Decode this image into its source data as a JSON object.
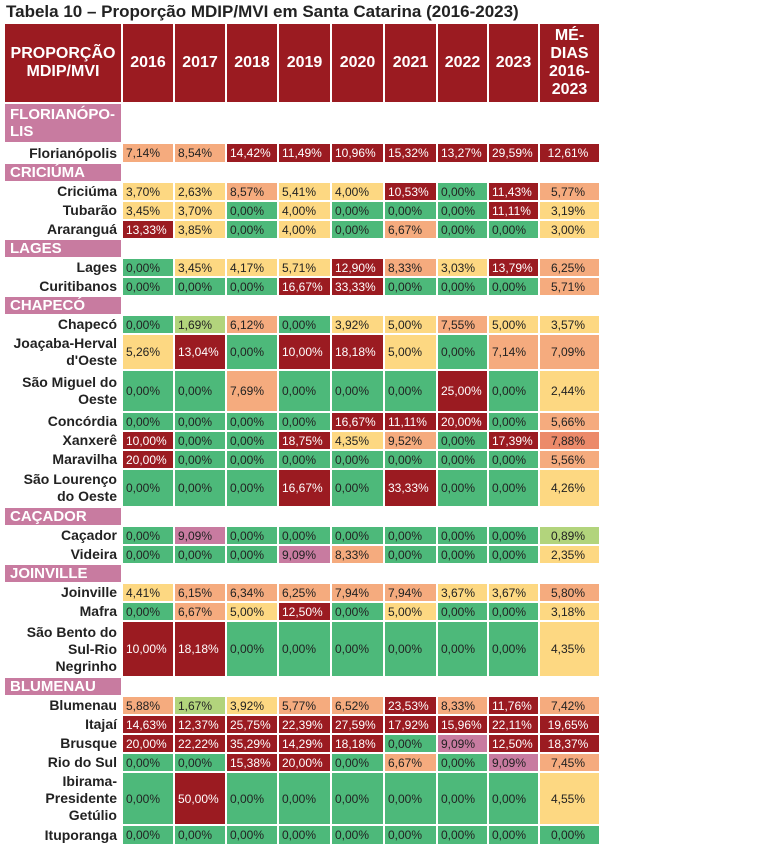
{
  "title": "Tabela 10 – Proporção MDIP/MVI em Santa Catarina (2016-2023)",
  "header": {
    "label": "PROPORÇÃO MDIP/MVI",
    "years": [
      "2016",
      "2017",
      "2018",
      "2019",
      "2020",
      "2021",
      "2022",
      "2023"
    ],
    "avg": "MÉ-DIAS 2016-2023"
  },
  "colors": {
    "header": "#9b1b21",
    "group": "#c87ba0",
    "green": "#4db97a",
    "light_green": "#b2d47c",
    "yellow": "#fdd882",
    "orange": "#f5ab7e",
    "dark_orange": "#ec8a6a",
    "red": "#9b1b21",
    "pink": "#c87ba0"
  },
  "rows": [
    {
      "group": "FLORIANÓPO-LIS"
    },
    {
      "label": "Florianópolis",
      "values": [
        "7,14%",
        "8,54%",
        "14,42%",
        "11,49%",
        "10,96%",
        "15,32%",
        "13,27%",
        "29,59%"
      ],
      "avg": "12,61%",
      "colors": [
        "O",
        "O",
        "R",
        "R",
        "R",
        "R",
        "R",
        "R"
      ],
      "avg_color": "R"
    },
    {
      "group": "CRICIÚMA"
    },
    {
      "label": "Criciúma",
      "values": [
        "3,70%",
        "2,63%",
        "8,57%",
        "5,41%",
        "4,00%",
        "10,53%",
        "0,00%",
        "11,43%"
      ],
      "avg": "5,77%",
      "colors": [
        "Y",
        "Y",
        "O",
        "Y",
        "Y",
        "R",
        "G",
        "R"
      ],
      "avg_color": "O"
    },
    {
      "label": "Tubarão",
      "values": [
        "3,45%",
        "3,70%",
        "0,00%",
        "4,00%",
        "0,00%",
        "0,00%",
        "0,00%",
        "11,11%"
      ],
      "avg": "3,19%",
      "colors": [
        "Y",
        "Y",
        "G",
        "Y",
        "G",
        "G",
        "G",
        "R"
      ],
      "avg_color": "Y"
    },
    {
      "label": "Araranguá",
      "values": [
        "13,33%",
        "3,85%",
        "0,00%",
        "4,00%",
        "0,00%",
        "6,67%",
        "0,00%",
        "0,00%"
      ],
      "avg": "3,00%",
      "colors": [
        "R",
        "Y",
        "G",
        "Y",
        "G",
        "O",
        "G",
        "G"
      ],
      "avg_color": "Y"
    },
    {
      "group": "LAGES"
    },
    {
      "label": "Lages",
      "values": [
        "0,00%",
        "3,45%",
        "4,17%",
        "5,71%",
        "12,90%",
        "8,33%",
        "3,03%",
        "13,79%"
      ],
      "avg": "6,25%",
      "colors": [
        "G",
        "Y",
        "Y",
        "Y",
        "R",
        "O",
        "Y",
        "R"
      ],
      "avg_color": "O"
    },
    {
      "label": "Curitibanos",
      "values": [
        "0,00%",
        "0,00%",
        "0,00%",
        "16,67%",
        "33,33%",
        "0,00%",
        "0,00%",
        "0,00%"
      ],
      "avg": "5,71%",
      "colors": [
        "G",
        "G",
        "G",
        "R",
        "R",
        "G",
        "G",
        "G"
      ],
      "avg_color": "O"
    },
    {
      "group": "CHAPECÓ"
    },
    {
      "label": "Chapecó",
      "values": [
        "0,00%",
        "1,69%",
        "6,12%",
        "0,00%",
        "3,92%",
        "5,00%",
        "7,55%",
        "5,00%"
      ],
      "avg": "3,57%",
      "colors": [
        "G",
        "LG",
        "O",
        "G",
        "Y",
        "Y",
        "O",
        "Y"
      ],
      "avg_color": "Y"
    },
    {
      "label": "Joaçaba-Herval d'Oeste",
      "values": [
        "5,26%",
        "13,04%",
        "0,00%",
        "10,00%",
        "18,18%",
        "5,00%",
        "0,00%",
        "7,14%"
      ],
      "avg": "7,09%",
      "colors": [
        "Y",
        "R",
        "G",
        "R",
        "R",
        "Y",
        "G",
        "O"
      ],
      "avg_color": "O"
    },
    {
      "label": "São Miguel do Oeste",
      "values": [
        "0,00%",
        "0,00%",
        "7,69%",
        "0,00%",
        "0,00%",
        "0,00%",
        "25,00%",
        "0,00%"
      ],
      "avg": "2,44%",
      "colors": [
        "G",
        "G",
        "O",
        "G",
        "G",
        "G",
        "R",
        "G"
      ],
      "avg_color": "Y"
    },
    {
      "label": "Concórdia",
      "values": [
        "0,00%",
        "0,00%",
        "0,00%",
        "0,00%",
        "16,67%",
        "11,11%",
        "20,00%",
        "0,00%"
      ],
      "avg": "5,66%",
      "colors": [
        "G",
        "G",
        "G",
        "G",
        "R",
        "R",
        "R",
        "G"
      ],
      "avg_color": "O"
    },
    {
      "label": "Xanxerê",
      "values": [
        "10,00%",
        "0,00%",
        "0,00%",
        "18,75%",
        "4,35%",
        "9,52%",
        "0,00%",
        "17,39%"
      ],
      "avg": "7,88%",
      "colors": [
        "R",
        "G",
        "G",
        "R",
        "Y",
        "O",
        "G",
        "R"
      ],
      "avg_color": "DO"
    },
    {
      "label": "Maravilha",
      "values": [
        "20,00%",
        "0,00%",
        "0,00%",
        "0,00%",
        "0,00%",
        "0,00%",
        "0,00%",
        "0,00%"
      ],
      "avg": "5,56%",
      "colors": [
        "R",
        "G",
        "G",
        "G",
        "G",
        "G",
        "G",
        "G"
      ],
      "avg_color": "O"
    },
    {
      "label": "São Lourenço do Oeste",
      "values": [
        "0,00%",
        "0,00%",
        "0,00%",
        "16,67%",
        "0,00%",
        "33,33%",
        "0,00%",
        "0,00%"
      ],
      "avg": "4,26%",
      "colors": [
        "G",
        "G",
        "G",
        "R",
        "G",
        "R",
        "G",
        "G"
      ],
      "avg_color": "Y"
    },
    {
      "group": "CAÇADOR"
    },
    {
      "label": "Caçador",
      "values": [
        "0,00%",
        "9,09%",
        "0,00%",
        "0,00%",
        "0,00%",
        "0,00%",
        "0,00%",
        "0,00%"
      ],
      "avg": "0,89%",
      "colors": [
        "G",
        "P",
        "G",
        "G",
        "G",
        "G",
        "G",
        "G"
      ],
      "avg_color": "LG"
    },
    {
      "label": "Videira",
      "values": [
        "0,00%",
        "0,00%",
        "0,00%",
        "9,09%",
        "8,33%",
        "0,00%",
        "0,00%",
        "0,00%"
      ],
      "avg": "2,35%",
      "colors": [
        "G",
        "G",
        "G",
        "P",
        "O",
        "G",
        "G",
        "G"
      ],
      "avg_color": "Y"
    },
    {
      "group": "JOINVILLE"
    },
    {
      "label": "Joinville",
      "values": [
        "4,41%",
        "6,15%",
        "6,34%",
        "6,25%",
        "7,94%",
        "7,94%",
        "3,67%",
        "3,67%"
      ],
      "avg": "5,80%",
      "colors": [
        "Y",
        "O",
        "O",
        "O",
        "O",
        "O",
        "Y",
        "Y"
      ],
      "avg_color": "O"
    },
    {
      "label": "Mafra",
      "values": [
        "0,00%",
        "6,67%",
        "5,00%",
        "12,50%",
        "0,00%",
        "5,00%",
        "0,00%",
        "0,00%"
      ],
      "avg": "3,18%",
      "colors": [
        "G",
        "O",
        "Y",
        "R",
        "G",
        "Y",
        "G",
        "G"
      ],
      "avg_color": "Y"
    },
    {
      "label": "São Bento do Sul-Rio Negrinho",
      "values": [
        "10,00%",
        "18,18%",
        "0,00%",
        "0,00%",
        "0,00%",
        "0,00%",
        "0,00%",
        "0,00%"
      ],
      "avg": "4,35%",
      "colors": [
        "R",
        "R",
        "G",
        "G",
        "G",
        "G",
        "G",
        "G"
      ],
      "avg_color": "Y"
    },
    {
      "group": "BLUMENAU"
    },
    {
      "label": "Blumenau",
      "values": [
        "5,88%",
        "1,67%",
        "3,92%",
        "5,77%",
        "6,52%",
        "23,53%",
        "8,33%",
        "11,76%"
      ],
      "avg": "7,42%",
      "colors": [
        "O",
        "LG",
        "Y",
        "O",
        "O",
        "R",
        "O",
        "R"
      ],
      "avg_color": "O"
    },
    {
      "label": "Itajaí",
      "values": [
        "14,63%",
        "12,37%",
        "25,75%",
        "22,39%",
        "27,59%",
        "17,92%",
        "15,96%",
        "22,11%"
      ],
      "avg": "19,65%",
      "colors": [
        "R",
        "R",
        "R",
        "R",
        "R",
        "R",
        "R",
        "R"
      ],
      "avg_color": "R"
    },
    {
      "label": "Brusque",
      "values": [
        "20,00%",
        "22,22%",
        "35,29%",
        "14,29%",
        "18,18%",
        "0,00%",
        "9,09%",
        "12,50%"
      ],
      "avg": "18,37%",
      "colors": [
        "R",
        "R",
        "R",
        "R",
        "R",
        "G",
        "P",
        "R"
      ],
      "avg_color": "R"
    },
    {
      "label": "Rio do Sul",
      "values": [
        "0,00%",
        "0,00%",
        "15,38%",
        "20,00%",
        "0,00%",
        "6,67%",
        "0,00%",
        "9,09%"
      ],
      "avg": "7,45%",
      "colors": [
        "G",
        "G",
        "R",
        "R",
        "G",
        "O",
        "G",
        "P"
      ],
      "avg_color": "O"
    },
    {
      "label": "Ibirama-Presidente Getúlio",
      "values": [
        "0,00%",
        "50,00%",
        "0,00%",
        "0,00%",
        "0,00%",
        "0,00%",
        "0,00%",
        "0,00%"
      ],
      "avg": "4,55%",
      "colors": [
        "G",
        "R",
        "G",
        "G",
        "G",
        "G",
        "G",
        "G"
      ],
      "avg_color": "Y"
    },
    {
      "label": "Ituporanga",
      "values": [
        "0,00%",
        "0,00%",
        "0,00%",
        "0,00%",
        "0,00%",
        "0,00%",
        "0,00%",
        "0,00%"
      ],
      "avg": "0,00%",
      "colors": [
        "G",
        "G",
        "G",
        "G",
        "G",
        "G",
        "G",
        "G"
      ],
      "avg_color": "G"
    }
  ]
}
